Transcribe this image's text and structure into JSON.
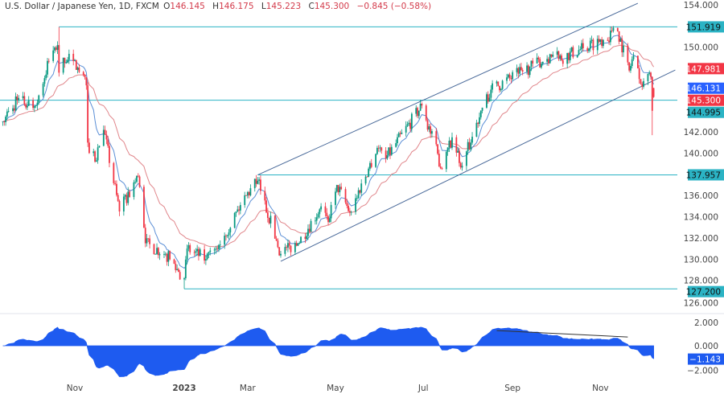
{
  "header": {
    "symbol": "U.S. Dollar / Japanese Yen, 1D, FXCM",
    "open_label": "O",
    "open": "146.145",
    "high_label": "H",
    "high": "146.175",
    "low_label": "L",
    "low": "145.223",
    "close_label": "C",
    "close": "145.300",
    "change": "−0.845 (−0.58%)"
  },
  "colors": {
    "up": "#089981",
    "down": "#f23645",
    "ma_fast": "#5b8fd6",
    "ma_slow": "#e0858a",
    "level": "#2bb3c4",
    "channel": "#4a6a9a",
    "oscillator": "#1e5bf0",
    "current_price": "#f23645",
    "ma_badge": "#2962ff"
  },
  "chart_data": {
    "type": "candlestick",
    "interval": "1D",
    "ylim": [
      126,
      154
    ],
    "y_ticks": [
      "154.000",
      "150.000",
      "142.000",
      "140.000",
      "136.000",
      "134.000",
      "132.000",
      "130.000",
      "128.000",
      "126.000"
    ],
    "x_ticks": [
      {
        "label": "Nov",
        "date": "2022-11-01",
        "bold": false
      },
      {
        "label": "2023",
        "date": "2023-01-16",
        "bold": true
      },
      {
        "label": "Mar",
        "date": "2023-03-01",
        "bold": false
      },
      {
        "label": "May",
        "date": "2023-05-01",
        "bold": false
      },
      {
        "label": "Jul",
        "date": "2023-07-01",
        "bold": false
      },
      {
        "label": "Sep",
        "date": "2023-09-01",
        "bold": false
      },
      {
        "label": "Nov",
        "date": "2023-11-01",
        "bold": false
      }
    ],
    "price_path": [
      [
        "2022-09-12",
        143.0
      ],
      [
        "2022-09-22",
        145.0
      ],
      [
        "2022-10-05",
        144.5
      ],
      [
        "2022-10-14",
        148.7
      ],
      [
        "2022-10-20",
        150.2
      ],
      [
        "2022-10-21",
        147.6
      ],
      [
        "2022-10-24",
        149.0
      ],
      [
        "2022-10-31",
        148.7
      ],
      [
        "2022-11-09",
        146.4
      ],
      [
        "2022-11-10",
        141.0
      ],
      [
        "2022-11-15",
        139.2
      ],
      [
        "2022-11-21",
        142.2
      ],
      [
        "2022-12-02",
        134.5
      ],
      [
        "2022-12-15",
        137.8
      ],
      [
        "2022-12-20",
        131.5
      ],
      [
        "2023-01-03",
        130.5
      ],
      [
        "2023-01-16",
        128.2
      ],
      [
        "2023-01-18",
        131.0
      ],
      [
        "2023-01-31",
        130.0
      ],
      [
        "2023-02-07",
        131.0
      ],
      [
        "2023-02-28",
        136.0
      ],
      [
        "2023-03-08",
        137.4
      ],
      [
        "2023-03-24",
        130.5
      ],
      [
        "2023-04-05",
        131.5
      ],
      [
        "2023-04-20",
        134.7
      ],
      [
        "2023-04-26",
        133.5
      ],
      [
        "2023-05-02",
        137.0
      ],
      [
        "2023-05-11",
        134.4
      ],
      [
        "2023-05-30",
        140.5
      ],
      [
        "2023-06-05",
        139.5
      ],
      [
        "2023-06-30",
        144.5
      ],
      [
        "2023-07-14",
        138.5
      ],
      [
        "2023-07-21",
        141.5
      ],
      [
        "2023-07-28",
        138.8
      ],
      [
        "2023-08-10",
        144.0
      ],
      [
        "2023-08-17",
        146.0
      ],
      [
        "2023-09-05",
        147.5
      ],
      [
        "2023-09-29",
        149.3
      ],
      [
        "2023-10-03",
        148.9
      ],
      [
        "2023-10-20",
        149.9
      ],
      [
        "2023-11-13",
        151.5
      ],
      [
        "2023-11-21",
        147.8
      ],
      [
        "2023-11-24",
        149.2
      ],
      [
        "2023-11-28",
        147.0
      ],
      [
        "2023-12-01",
        146.8
      ],
      [
        "2023-12-06",
        147.2
      ],
      [
        "2023-12-07",
        144.0
      ]
    ],
    "extremes": [
      {
        "date": "2022-10-21",
        "high": 151.919
      },
      {
        "date": "2023-01-16",
        "low": 127.2
      },
      {
        "date": "2023-12-07",
        "low": 141.7
      }
    ],
    "last_candle": {
      "date": "2023-12-08",
      "open": 146.145,
      "high": 146.175,
      "low": 145.223,
      "close": 145.3
    },
    "moving_averages": [
      {
        "kind": "fast",
        "last": "146.131"
      },
      {
        "kind": "slow",
        "last": "147.981"
      }
    ],
    "horizontal_levels": [
      {
        "price": 151.919,
        "label": "151.919",
        "from": "2022-10-21"
      },
      {
        "price": 144.995,
        "label": "144.995",
        "from": null
      },
      {
        "price": 137.957,
        "label": "137.957",
        "from": "2023-03-08"
      },
      {
        "price": 127.2,
        "label": "127.200",
        "from": "2023-01-16"
      }
    ],
    "channel": {
      "upper": [
        [
          "2023-03-08",
          137.95
        ],
        [
          "2023-11-27",
          154.15
        ]
      ],
      "lower": [
        [
          "2023-03-24",
          129.8
        ],
        [
          "2023-12-23",
          147.85
        ]
      ]
    },
    "current_price_label": "145.300",
    "oscillator": {
      "ylim": [
        -2.5,
        2.5
      ],
      "y_ticks": [
        "2.000",
        "0.000",
        "−2.000"
      ],
      "last": "−1.143",
      "trendline": [
        [
          "2023-08-21",
          1.3
        ],
        [
          "2023-11-20",
          0.75
        ]
      ]
    }
  }
}
